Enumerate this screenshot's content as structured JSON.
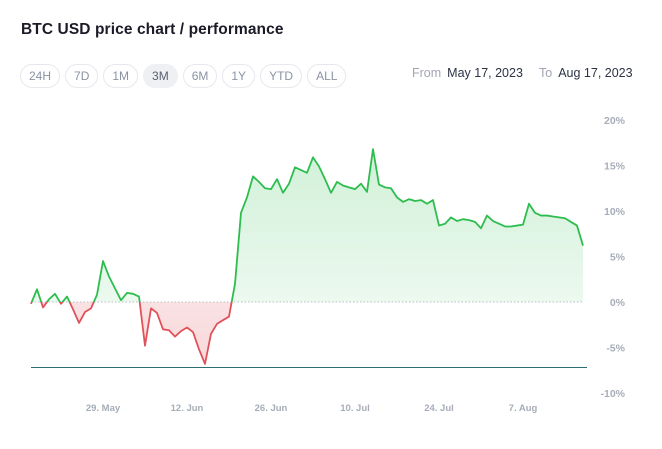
{
  "title": "BTC USD price chart / performance",
  "tabs": [
    {
      "label": "24H",
      "active": false
    },
    {
      "label": "7D",
      "active": false
    },
    {
      "label": "1M",
      "active": false
    },
    {
      "label": "3M",
      "active": true
    },
    {
      "label": "6M",
      "active": false
    },
    {
      "label": "1Y",
      "active": false
    },
    {
      "label": "YTD",
      "active": false
    },
    {
      "label": "ALL",
      "active": false
    }
  ],
  "range": {
    "from_label": "From",
    "from_value": "May 17, 2023",
    "to_label": "To",
    "to_value": "Aug 17, 2023"
  },
  "colors": {
    "positive": "#2dbd4e",
    "negative": "#e0525a",
    "baseline": "#2d6e73",
    "tick": "#a7adb8"
  },
  "chart_data": {
    "type": "line",
    "x_unit": "date",
    "y_unit": "% performance",
    "x_tick_labels": [
      "29. May",
      "12. Jun",
      "26. Jun",
      "10. Jul",
      "24. Jul",
      "7. Aug"
    ],
    "y_tick_labels": [
      "20%",
      "15%",
      "10%",
      "5%",
      "0%",
      "-5%",
      "-10%"
    ],
    "ylim": [
      -10,
      20
    ],
    "xlim": [
      "2023-05-17",
      "2023-08-17"
    ],
    "grid": false,
    "series": [
      {
        "points": [
          [
            "2023-05-17",
            -0.2
          ],
          [
            "2023-05-18",
            1.4
          ],
          [
            "2023-05-19",
            -0.6
          ],
          [
            "2023-05-20",
            0.3
          ],
          [
            "2023-05-21",
            0.9
          ],
          [
            "2023-05-22",
            -0.2
          ],
          [
            "2023-05-23",
            0.6
          ],
          [
            "2023-05-24",
            -0.8
          ],
          [
            "2023-05-25",
            -2.3
          ],
          [
            "2023-05-26",
            -1.1
          ],
          [
            "2023-05-27",
            -0.7
          ],
          [
            "2023-05-28",
            0.8
          ],
          [
            "2023-05-29",
            4.5
          ],
          [
            "2023-05-30",
            2.8
          ],
          [
            "2023-05-31",
            1.5
          ],
          [
            "2023-06-01",
            0.2
          ],
          [
            "2023-06-02",
            1.0
          ],
          [
            "2023-06-03",
            0.9
          ],
          [
            "2023-06-04",
            0.6
          ],
          [
            "2023-06-05",
            -4.8
          ],
          [
            "2023-06-06",
            -0.7
          ],
          [
            "2023-06-07",
            -1.2
          ],
          [
            "2023-06-08",
            -3.0
          ],
          [
            "2023-06-09",
            -3.1
          ],
          [
            "2023-06-10",
            -3.8
          ],
          [
            "2023-06-11",
            -3.2
          ],
          [
            "2023-06-12",
            -2.8
          ],
          [
            "2023-06-13",
            -3.3
          ],
          [
            "2023-06-14",
            -5.2
          ],
          [
            "2023-06-15",
            -6.8
          ],
          [
            "2023-06-16",
            -3.5
          ],
          [
            "2023-06-17",
            -2.4
          ],
          [
            "2023-06-18",
            -2.0
          ],
          [
            "2023-06-19",
            -1.6
          ],
          [
            "2023-06-20",
            2.0
          ],
          [
            "2023-06-21",
            9.8
          ],
          [
            "2023-06-22",
            11.5
          ],
          [
            "2023-06-23",
            13.8
          ],
          [
            "2023-06-24",
            13.2
          ],
          [
            "2023-06-25",
            12.5
          ],
          [
            "2023-06-26",
            12.4
          ],
          [
            "2023-06-27",
            13.5
          ],
          [
            "2023-06-28",
            12.0
          ],
          [
            "2023-06-29",
            13.0
          ],
          [
            "2023-06-30",
            14.8
          ],
          [
            "2023-07-01",
            14.5
          ],
          [
            "2023-07-02",
            14.2
          ],
          [
            "2023-07-03",
            15.9
          ],
          [
            "2023-07-04",
            14.9
          ],
          [
            "2023-07-05",
            13.5
          ],
          [
            "2023-07-06",
            12.0
          ],
          [
            "2023-07-07",
            13.2
          ],
          [
            "2023-07-08",
            12.8
          ],
          [
            "2023-07-09",
            12.6
          ],
          [
            "2023-07-10",
            12.4
          ],
          [
            "2023-07-11",
            13.0
          ],
          [
            "2023-07-12",
            12.1
          ],
          [
            "2023-07-13",
            16.8
          ],
          [
            "2023-07-14",
            12.9
          ],
          [
            "2023-07-15",
            12.6
          ],
          [
            "2023-07-16",
            12.5
          ],
          [
            "2023-07-17",
            11.5
          ],
          [
            "2023-07-18",
            11.0
          ],
          [
            "2023-07-19",
            11.3
          ],
          [
            "2023-07-20",
            11.1
          ],
          [
            "2023-07-21",
            11.2
          ],
          [
            "2023-07-22",
            10.8
          ],
          [
            "2023-07-23",
            11.2
          ],
          [
            "2023-07-24",
            8.4
          ],
          [
            "2023-07-25",
            8.6
          ],
          [
            "2023-07-26",
            9.3
          ],
          [
            "2023-07-27",
            8.9
          ],
          [
            "2023-07-28",
            9.1
          ],
          [
            "2023-07-29",
            9.0
          ],
          [
            "2023-07-30",
            8.8
          ],
          [
            "2023-07-31",
            8.1
          ],
          [
            "2023-08-01",
            9.5
          ],
          [
            "2023-08-02",
            8.9
          ],
          [
            "2023-08-03",
            8.6
          ],
          [
            "2023-08-04",
            8.3
          ],
          [
            "2023-08-05",
            8.3
          ],
          [
            "2023-08-06",
            8.4
          ],
          [
            "2023-08-07",
            8.5
          ],
          [
            "2023-08-08",
            10.8
          ],
          [
            "2023-08-09",
            9.8
          ],
          [
            "2023-08-10",
            9.5
          ],
          [
            "2023-08-11",
            9.5
          ],
          [
            "2023-08-12",
            9.4
          ],
          [
            "2023-08-13",
            9.3
          ],
          [
            "2023-08-14",
            9.2
          ],
          [
            "2023-08-15",
            8.8
          ],
          [
            "2023-08-16",
            8.4
          ],
          [
            "2023-08-17",
            6.2
          ]
        ]
      }
    ],
    "reference_line": -7.2
  }
}
